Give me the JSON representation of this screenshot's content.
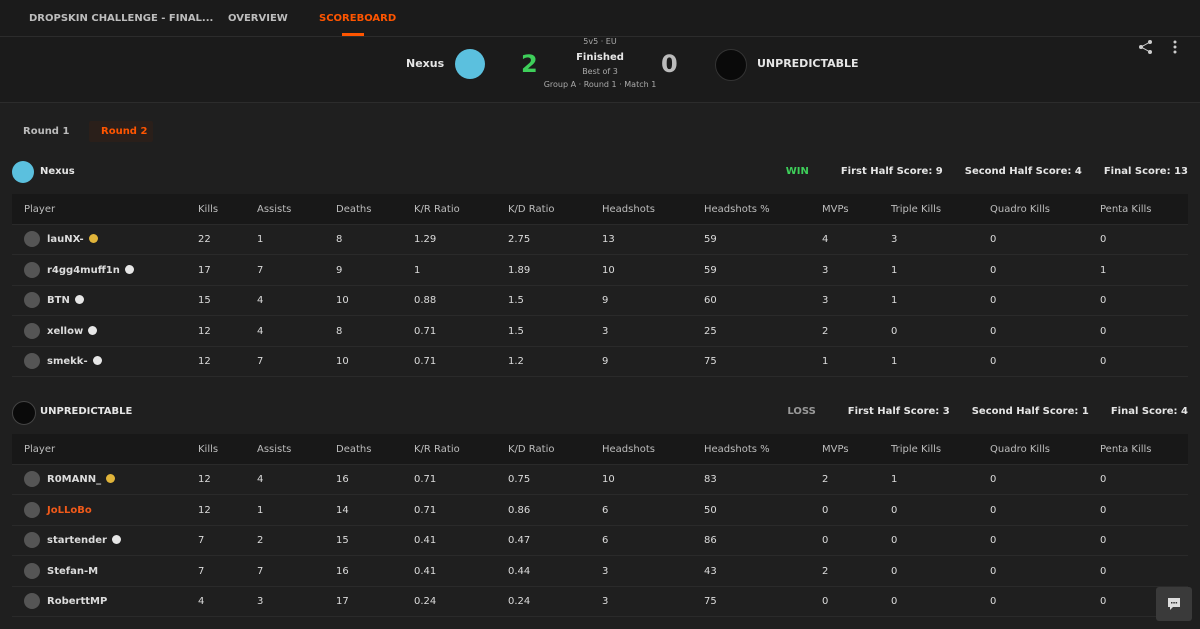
{
  "nav": {
    "tabs": [
      "DROPSKIN CHALLENGE - FINAL...",
      "OVERVIEW",
      "SCOREBOARD"
    ]
  },
  "match": {
    "team1": "Nexus",
    "score1": 2,
    "format": "5v5 · EU",
    "status": "Finished",
    "best_of": "Best of 3",
    "stage": "Group A · Round 1 · Match 1",
    "score2": 0,
    "team2": "UNPREDICTABLE"
  },
  "rounds": [
    "Round 1",
    "Round 2"
  ],
  "columns": [
    "Player",
    "Kills",
    "Assists",
    "Deaths",
    "K/R Ratio",
    "K/D Ratio",
    "Headshots",
    "Headshots %",
    "MVPs",
    "Triple Kills",
    "Quadro Kills",
    "Penta Kills"
  ],
  "teams": [
    {
      "name": "Nexus",
      "result": "WIN",
      "result_color": "#3ecf5a",
      "first_half": "First Half Score: 9",
      "second_half": "Second Half Score: 4",
      "final": "Final Score: 13",
      "rows": [
        {
          "player": "lauNX-",
          "badge": "gold",
          "stats": [
            22,
            1,
            8,
            1.29,
            2.75,
            13,
            59,
            4,
            3,
            0,
            0
          ]
        },
        {
          "player": "r4gg4muff1n",
          "badge": "white",
          "stats": [
            17,
            7,
            9,
            1,
            1.89,
            10,
            59,
            3,
            1,
            0,
            1
          ]
        },
        {
          "player": "BTN",
          "badge": "white",
          "stats": [
            15,
            4,
            10,
            0.88,
            1.5,
            9,
            60,
            3,
            1,
            0,
            0
          ]
        },
        {
          "player": "xellow",
          "badge": "white",
          "stats": [
            12,
            4,
            8,
            0.71,
            1.5,
            3,
            25,
            2,
            0,
            0,
            0
          ]
        },
        {
          "player": "smekk-",
          "badge": "white",
          "stats": [
            12,
            7,
            10,
            0.71,
            1.2,
            9,
            75,
            1,
            1,
            0,
            0
          ]
        }
      ]
    },
    {
      "name": "UNPREDICTABLE",
      "result": "LOSS",
      "result_color": "#9a9a9a",
      "first_half": "First Half Score: 3",
      "second_half": "Second Half Score: 1",
      "final": "Final Score: 4",
      "rows": [
        {
          "player": "R0MANN_",
          "badge": "gold",
          "stats": [
            12,
            4,
            16,
            0.71,
            0.75,
            10,
            83,
            2,
            1,
            0,
            0
          ]
        },
        {
          "player": "JoLLoBo",
          "color": "#f05a1a",
          "stats": [
            12,
            1,
            14,
            0.71,
            0.86,
            6,
            50,
            0,
            0,
            0,
            0
          ]
        },
        {
          "player": "startender",
          "badge": "white",
          "stats": [
            7,
            2,
            15,
            0.41,
            0.47,
            6,
            86,
            0,
            0,
            0,
            0
          ]
        },
        {
          "player": "Stefan-M",
          "stats": [
            7,
            7,
            16,
            0.41,
            0.44,
            3,
            43,
            2,
            0,
            0,
            0
          ]
        },
        {
          "player": "RoberttMP",
          "stats": [
            4,
            3,
            17,
            0.24,
            0.24,
            3,
            75,
            0,
            0,
            0,
            0
          ]
        }
      ]
    }
  ]
}
